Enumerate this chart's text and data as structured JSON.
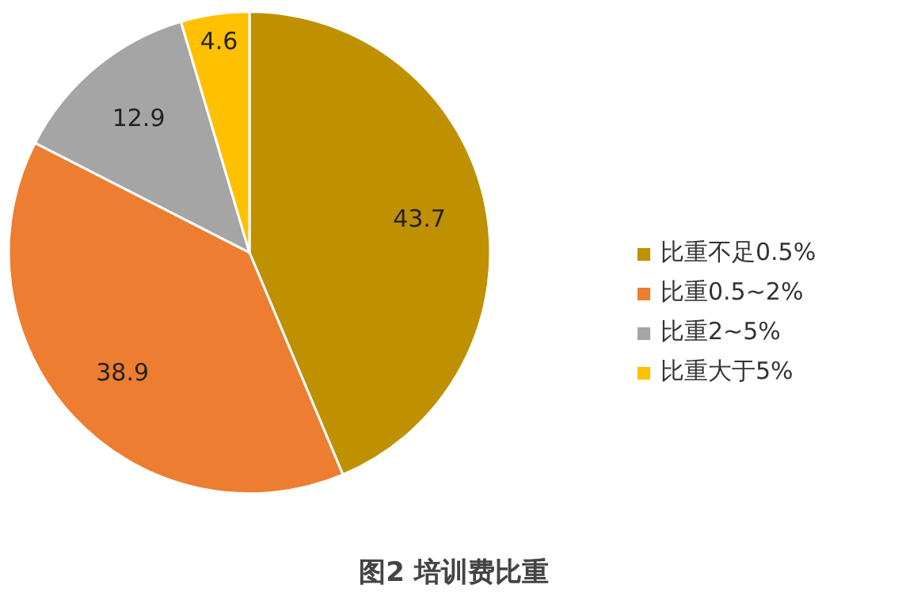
{
  "chart_data": {
    "type": "pie",
    "title": "图2 培训费比重",
    "categories": [
      "比重不足0.5%",
      "比重0.5~2%",
      "比重2~5%",
      "比重大于5%"
    ],
    "values": [
      43.7,
      38.9,
      12.9,
      4.6
    ],
    "colors": [
      "#bf9000",
      "#ed7d31",
      "#a5a5a5",
      "#ffc000"
    ],
    "data_labels": true,
    "legend": "right"
  }
}
